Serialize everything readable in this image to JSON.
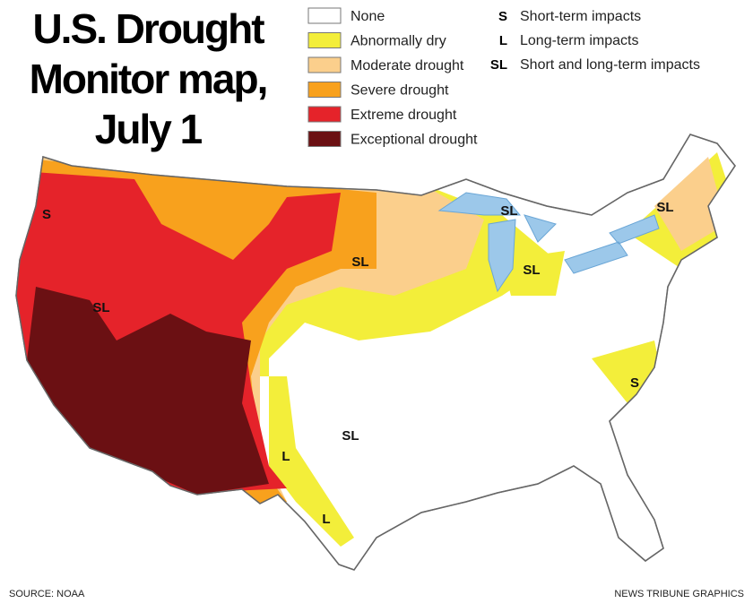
{
  "title_lines": [
    "U.S. Drought",
    "Monitor map,",
    "July 1"
  ],
  "legend": [
    {
      "label": "None",
      "color": "#ffffff"
    },
    {
      "label": "Abnormally dry",
      "color": "#f3ee3a"
    },
    {
      "label": "Moderate drought",
      "color": "#fbcf8c"
    },
    {
      "label": "Severe drought",
      "color": "#f8a11d"
    },
    {
      "label": "Extreme drought",
      "color": "#e5232a"
    },
    {
      "label": "Exceptional drought",
      "color": "#6b1013"
    }
  ],
  "impacts": [
    {
      "code": "S",
      "label": "Short-term impacts"
    },
    {
      "code": "L",
      "label": "Long-term impacts"
    },
    {
      "code": "SL",
      "label": "Short and long-term impacts"
    }
  ],
  "map_labels": [
    "S",
    "SL",
    "SL",
    "SL",
    "SL",
    "SL",
    "S",
    "SL",
    "L",
    "L"
  ],
  "source": "SOURCE: NOAA",
  "credit": "NEWS TRIBUNE GRAPHICS"
}
